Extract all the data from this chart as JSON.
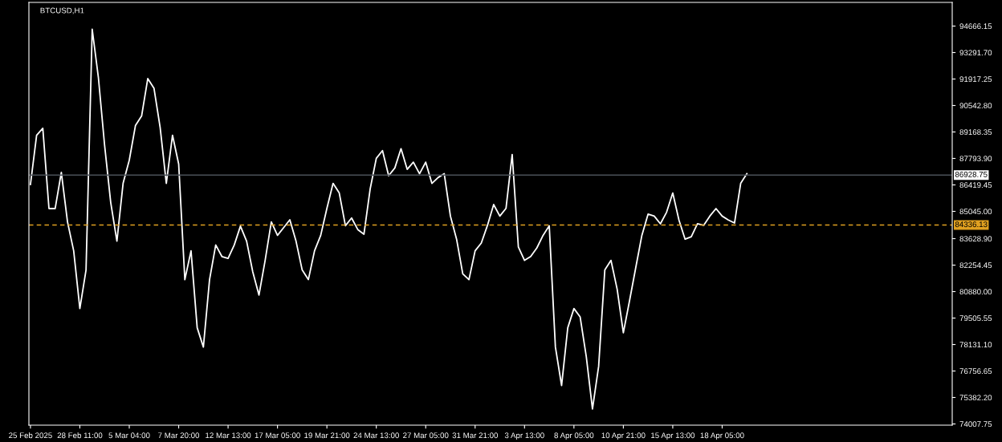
{
  "chart_data": {
    "type": "line",
    "title": "BTCUSD,H1",
    "categories": [
      "25 Feb 2025",
      null,
      null,
      null,
      null,
      null,
      null,
      null,
      "28 Feb 11:00",
      null,
      null,
      null,
      null,
      null,
      null,
      null,
      "5 Mar 04:00",
      null,
      null,
      null,
      null,
      null,
      null,
      null,
      "7 Mar 20:00",
      null,
      null,
      null,
      null,
      null,
      null,
      null,
      "12 Mar 13:00",
      null,
      null,
      null,
      null,
      null,
      null,
      null,
      "17 Mar 05:00",
      null,
      null,
      null,
      null,
      null,
      null,
      null,
      "19 Mar 21:00",
      null,
      null,
      null,
      null,
      null,
      null,
      null,
      "24 Mar 13:00",
      null,
      null,
      null,
      null,
      null,
      null,
      null,
      "27 Mar 05:00",
      null,
      null,
      null,
      null,
      null,
      null,
      null,
      "31 Mar 21:00",
      null,
      null,
      null,
      null,
      null,
      null,
      null,
      "3 Apr 13:00",
      null,
      null,
      null,
      null,
      null,
      null,
      null,
      "8 Apr 05:00",
      null,
      null,
      null,
      null,
      null,
      null,
      null,
      "10 Apr 21:00",
      null,
      null,
      null,
      null,
      null,
      null,
      null,
      "15 Apr 13:00",
      null,
      null,
      null,
      null,
      null,
      null,
      null,
      "18 Apr 05:00",
      null,
      null,
      null,
      null,
      null,
      null,
      null,
      null,
      null,
      null,
      null,
      null,
      null,
      null,
      null,
      null,
      null,
      null,
      null,
      null,
      null,
      null,
      null,
      null,
      null,
      null,
      null,
      null,
      null,
      null,
      null,
      null,
      null,
      null,
      null,
      null,
      null
    ],
    "series": [
      {
        "color": "#ffffff",
        "values": [
          86440,
          89000,
          89360,
          85190,
          85190,
          87070,
          84500,
          83000,
          80000,
          82000,
          94500,
          92000,
          88500,
          85500,
          83500,
          86500,
          87700,
          89500,
          90000,
          91940,
          91440,
          89400,
          86500,
          89000,
          87500,
          81500,
          83000,
          79000,
          78000,
          81500,
          83300,
          82700,
          82600,
          83300,
          84280,
          83500,
          81900,
          80700,
          82500,
          84500,
          83800,
          84200,
          84610,
          83500,
          82000,
          81500,
          83000,
          83800,
          85200,
          86500,
          86000,
          84300,
          84700,
          84100,
          83860,
          86200,
          87800,
          88200,
          86900,
          87300,
          88300,
          87230,
          87600,
          87000,
          87600,
          86500,
          86800,
          87000,
          84800,
          83600,
          81800,
          81500,
          83000,
          83400,
          84320,
          85400,
          84800,
          85200,
          88000,
          83200,
          82500,
          82700,
          83150,
          83800,
          84300,
          78000,
          76000,
          79000,
          80000,
          79570,
          77500,
          74780,
          77000,
          82000,
          82500,
          81000,
          78740,
          80400,
          82110,
          83800,
          84900,
          84800,
          84400,
          85000,
          86000,
          84600,
          83600,
          83730,
          84400,
          84320,
          84800,
          85190,
          84800,
          84600,
          84440,
          86500,
          87000,
          null,
          null,
          null,
          null,
          null,
          null,
          null,
          null,
          null,
          null,
          null,
          null,
          null,
          null,
          null,
          null,
          null,
          null,
          null,
          null,
          null,
          null,
          null,
          null,
          null,
          null,
          null,
          null,
          null,
          null,
          null,
          null,
          null
        ]
      }
    ],
    "ylim": [
      73945,
      95895
    ],
    "yticks": [
      94666.15,
      {
        "value": 93291.7,
        "label": "93291.70"
      },
      91917.25,
      {
        "value": 90542.8,
        "label": "90542.80"
      },
      89168.35,
      {
        "value": 87793.9,
        "label": "87793.90"
      },
      86419.45,
      {
        "value": 85045,
        "label": "85045.00"
      },
      {
        "value": 83628.9,
        "label": "83628.90"
      },
      82254.45,
      {
        "value": 80880,
        "label": "80880.00"
      },
      79505.55,
      {
        "value": 78131.1,
        "label": "78131.10"
      },
      76756.65,
      {
        "value": 75382.2,
        "label": "75382.20"
      },
      74007.75
    ],
    "ref_lines": [
      {
        "axis": "y",
        "value": 86928.75,
        "label": "86928.75",
        "color": "#4a5058",
        "line_style": "solid"
      },
      {
        "axis": "y",
        "value": 84336.13,
        "label": "84336.13",
        "color": "#e0a020",
        "line_style": "dashed"
      }
    ],
    "grid": false,
    "legend": false
  }
}
